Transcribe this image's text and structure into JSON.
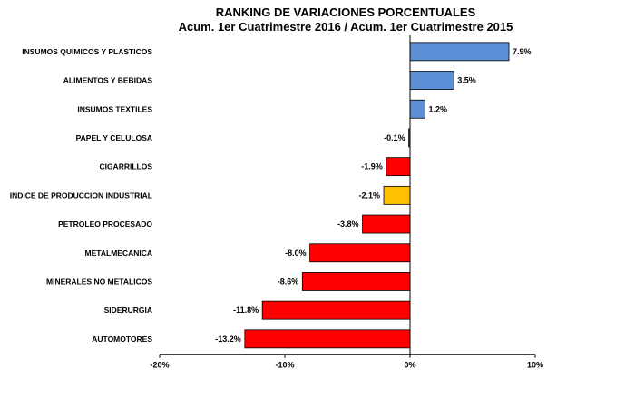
{
  "chart_data": {
    "type": "bar",
    "orientation": "horizontal",
    "title": "RANKING DE VARIACIONES PORCENTUALES",
    "subtitle": "Acum. 1er Cuatrimestre 2016 / Acum. 1er Cuatrimestre 2015",
    "categories": [
      "INSUMOS QUIMICOS Y PLASTICOS",
      "ALIMENTOS Y BEBIDAS",
      "INSUMOS TEXTILES",
      "PAPEL Y CELULOSA",
      "CIGARRILLOS",
      "INDICE DE PRODUCCION INDUSTRIAL",
      "PETROLEO PROCESADO",
      "METALMECANICA",
      "MINERALES NO METALICOS",
      "SIDERURGIA",
      "AUTOMOTORES"
    ],
    "values": [
      7.9,
      3.5,
      1.2,
      -0.1,
      -1.9,
      -2.1,
      -3.8,
      -8.0,
      -8.6,
      -11.8,
      -13.2
    ],
    "value_labels": [
      "7.9%",
      "3.5%",
      "1.2%",
      "-0.1%",
      "-1.9%",
      "-2.1%",
      "-3.8%",
      "-8.0%",
      "-8.6%",
      "-11.8%",
      "-13.2%"
    ],
    "bar_colors": [
      "#5b8fd6",
      "#5b8fd6",
      "#5b8fd6",
      "#ff0000",
      "#ff0000",
      "#ffc000",
      "#ff0000",
      "#ff0000",
      "#ff0000",
      "#ff0000",
      "#ff0000"
    ],
    "xlim": [
      -20,
      10
    ],
    "xticks": [
      -20,
      -10,
      0,
      10
    ],
    "xtick_labels": [
      "-20%",
      "-10%",
      "0%",
      "10%"
    ],
    "grid": false,
    "legend": "none"
  }
}
